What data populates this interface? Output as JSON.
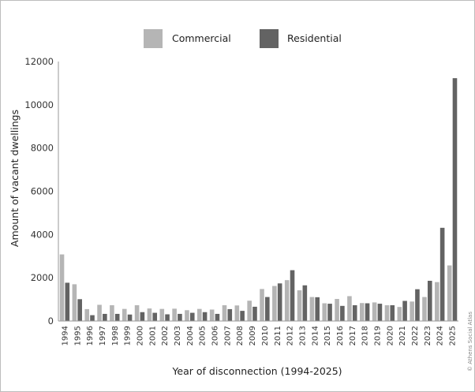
{
  "chart_data": {
    "type": "bar",
    "categories": [
      "1994",
      "1995",
      "1996",
      "1997",
      "1998",
      "1999",
      "2000",
      "2001",
      "2002",
      "2003",
      "2004",
      "2005",
      "2006",
      "2007",
      "2008",
      "2009",
      "2010",
      "2011",
      "2012",
      "2013",
      "2014",
      "2015",
      "2016",
      "2017",
      "2018",
      "2019",
      "2020",
      "2021",
      "2022",
      "2023",
      "2024",
      "2025"
    ],
    "series": [
      {
        "name": "Commercial",
        "color": "#b5b5b5",
        "values": [
          3080,
          1700,
          550,
          750,
          730,
          560,
          730,
          580,
          560,
          570,
          500,
          560,
          530,
          730,
          720,
          940,
          1480,
          1620,
          1890,
          1420,
          1110,
          820,
          1020,
          1150,
          830,
          860,
          730,
          650,
          900,
          1110,
          1800,
          2570
        ]
      },
      {
        "name": "Residential",
        "color": "#636363",
        "values": [
          1770,
          1010,
          270,
          330,
          330,
          300,
          410,
          380,
          310,
          330,
          380,
          410,
          330,
          550,
          470,
          660,
          1110,
          1740,
          2350,
          1650,
          1100,
          800,
          700,
          730,
          820,
          800,
          730,
          930,
          1470,
          1860,
          4310,
          11230
        ]
      }
    ],
    "xlabel": "Year of disconnection (1994-2025)",
    "ylabel": "Amount of vacant dwellings",
    "ylim": [
      0,
      12000
    ],
    "yticks": [
      0,
      2000,
      4000,
      6000,
      8000,
      10000,
      12000
    ],
    "grid": false,
    "legend": "top-center"
  },
  "credit": "© Athens Social Atlas"
}
